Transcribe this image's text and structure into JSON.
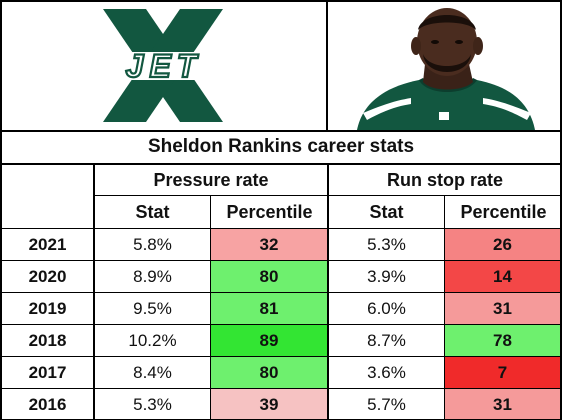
{
  "title": "Sheldon Rankins career stats",
  "logo": {
    "letters": "JET",
    "big_letter": "X",
    "color": "#125740"
  },
  "groups": {
    "pressure": "Pressure rate",
    "run_stop": "Run stop rate"
  },
  "columns": {
    "stat": "Stat",
    "percentile": "Percentile"
  },
  "rows": [
    {
      "year": "2021",
      "pressure_stat": "5.8%",
      "pressure_pct": "32",
      "pressure_color": "#f7a3a3",
      "run_stat": "5.3%",
      "run_pct": "26",
      "run_color": "#f58383"
    },
    {
      "year": "2020",
      "pressure_stat": "8.9%",
      "pressure_pct": "80",
      "pressure_color": "#6ef06e",
      "run_stat": "3.9%",
      "run_pct": "14",
      "run_color": "#f34747"
    },
    {
      "year": "2019",
      "pressure_stat": "9.5%",
      "pressure_pct": "81",
      "pressure_color": "#6ef06e",
      "run_stat": "6.0%",
      "run_pct": "31",
      "run_color": "#f59a9a"
    },
    {
      "year": "2018",
      "pressure_stat": "10.2%",
      "pressure_pct": "89",
      "pressure_color": "#33e533",
      "run_stat": "8.7%",
      "run_pct": "78",
      "run_color": "#6ef06e"
    },
    {
      "year": "2017",
      "pressure_stat": "8.4%",
      "pressure_pct": "80",
      "pressure_color": "#6ef06e",
      "run_stat": "3.6%",
      "run_pct": "7",
      "run_color": "#f02a2a"
    },
    {
      "year": "2016",
      "pressure_stat": "5.3%",
      "pressure_pct": "39",
      "pressure_color": "#f6c2c2",
      "run_stat": "5.7%",
      "run_pct": "31",
      "run_color": "#f59a9a"
    }
  ]
}
